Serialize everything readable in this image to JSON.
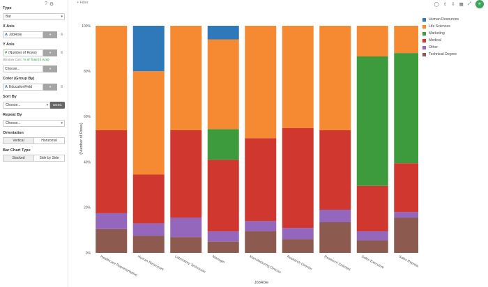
{
  "panel": {
    "type": {
      "title": "Type",
      "value": "Bar"
    },
    "x_axis": {
      "title": "X Axis",
      "field": "JobRole"
    },
    "y_axis": {
      "title": "Y Axis",
      "field": "(Number of Rows)",
      "calc_label": "Window Calc:",
      "calc_value": "% of Total (X Axis)",
      "extra": "Choose..."
    },
    "color": {
      "title": "Color (Group By)",
      "field": "EducationField"
    },
    "sort_by": {
      "title": "Sort By",
      "value": "Choose...",
      "order": "DESC"
    },
    "repeat_by": {
      "title": "Repeat By",
      "value": "Choose..."
    },
    "orientation": {
      "title": "Orientation",
      "options": [
        "Vertical",
        "Horizontal"
      ],
      "selected": "Vertical"
    },
    "bar_chart_type": {
      "title": "Bar Chart Type",
      "options": [
        "Stacked",
        "Side by Side"
      ],
      "selected": "Stacked"
    }
  },
  "topbar": {
    "filter_label": "Filter"
  },
  "colors": {
    "accent": "#3aa55b"
  },
  "chart_data": {
    "type": "bar",
    "stacked": true,
    "categories": [
      "Healthcare Representative",
      "Human Resources",
      "Laboratory Technician",
      "Manager",
      "Manufacturing Director",
      "Research Director",
      "Research Scientist",
      "Sales Executive",
      "Sales Representative"
    ],
    "series": [
      {
        "name": "Technical Degree",
        "color": "#8c5a4e",
        "values": [
          10.5,
          7.5,
          7,
          5,
          9.5,
          6,
          13.5,
          5.5,
          15.5
        ]
      },
      {
        "name": "Other",
        "color": "#9467bd",
        "values": [
          7,
          5.5,
          8.5,
          4.5,
          4.5,
          5,
          5.5,
          4,
          2.5
        ]
      },
      {
        "name": "Medical",
        "color": "#d0382f",
        "values": [
          36.5,
          21.5,
          38.5,
          31.5,
          36.5,
          44,
          35,
          20,
          21.5
        ]
      },
      {
        "name": "Marketing",
        "color": "#3d9b3d",
        "values": [
          0,
          0,
          0,
          13.5,
          0,
          0,
          0,
          57,
          48.5
        ]
      },
      {
        "name": "Life Sciences",
        "color": "#f58a33",
        "values": [
          46,
          45.5,
          46,
          39.5,
          49.5,
          45,
          46,
          13.5,
          12
        ]
      },
      {
        "name": "Human Resources",
        "color": "#2f78b9",
        "values": [
          0,
          20,
          0,
          6,
          0,
          0,
          0,
          0,
          0
        ]
      }
    ],
    "legend_order": [
      "Human Resources",
      "Life Sciences",
      "Marketing",
      "Medical",
      "Other",
      "Technical Degree"
    ],
    "yticks": [
      "0%",
      "20%",
      "40%",
      "60%",
      "80%",
      "100%"
    ],
    "ylim": [
      0,
      100
    ],
    "xlabel": "JobRole",
    "ylabel": "(Number of Rows)",
    "legend_position": "top-right"
  }
}
